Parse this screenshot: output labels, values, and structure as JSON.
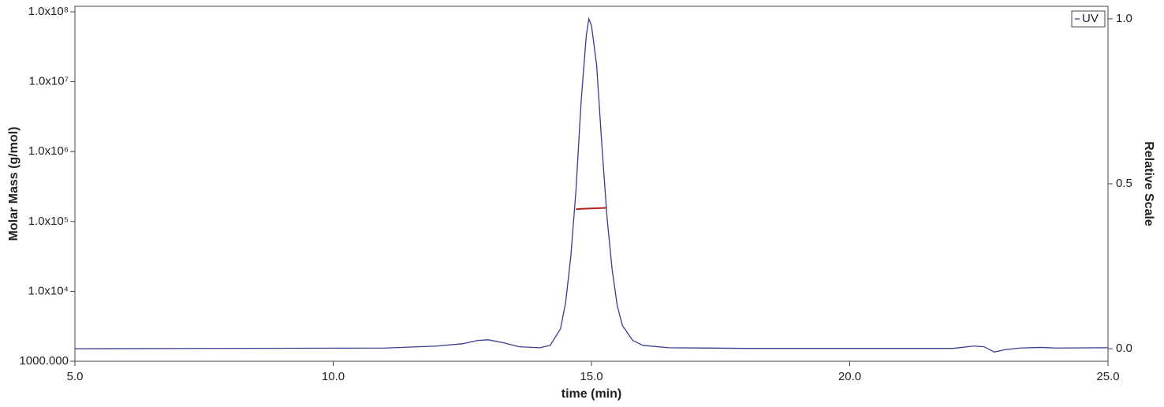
{
  "chart_data": {
    "type": "line",
    "xlabel": "time (min)",
    "ylabel": "Molar Mass (g/mol)",
    "y2label": "Relative Scale",
    "xlim": [
      5,
      25
    ],
    "xticks": [
      {
        "value": 5,
        "label": "5.0"
      },
      {
        "value": 10,
        "label": "10.0"
      },
      {
        "value": 15,
        "label": "15.0"
      },
      {
        "value": 20,
        "label": "20.0"
      },
      {
        "value": 25,
        "label": "25.0"
      }
    ],
    "ylim": [
      1000,
      120000000
    ],
    "ylog": true,
    "yticks": [
      {
        "value": 1000,
        "label": "1000.000"
      },
      {
        "value": 10000,
        "label": "1.0x10⁴"
      },
      {
        "value": 100000,
        "label": "1.0x10⁵"
      },
      {
        "value": 1000000,
        "label": "1.0x10⁶"
      },
      {
        "value": 10000000,
        "label": "1.0x10⁷"
      },
      {
        "value": 100000000,
        "label": "1.0x10⁸"
      }
    ],
    "y2lim": [
      -0.038,
      1.038
    ],
    "y2ticks": [
      {
        "value": 0,
        "label": "0.0"
      },
      {
        "value": 0.5,
        "label": "0.5"
      },
      {
        "value": 1,
        "label": "1.0"
      }
    ],
    "legend": "top-right",
    "series": [
      {
        "name": "UV",
        "color": "#3b3b8f",
        "axis": "y2",
        "x": [
          5,
          11,
          12,
          12.5,
          12.8,
          13.0,
          13.3,
          13.6,
          14.0,
          14.2,
          14.4,
          14.5,
          14.6,
          14.7,
          14.8,
          14.9,
          14.95,
          15.0,
          15.1,
          15.2,
          15.3,
          15.4,
          15.5,
          15.6,
          15.8,
          16.0,
          16.5,
          18,
          22,
          22.4,
          22.6,
          22.8,
          23.0,
          23.3,
          23.7,
          24,
          25
        ],
        "values": [
          0,
          0.002,
          0.008,
          0.015,
          0.025,
          0.027,
          0.018,
          0.006,
          0.003,
          0.01,
          0.06,
          0.14,
          0.28,
          0.48,
          0.75,
          0.95,
          1.0,
          0.98,
          0.86,
          0.62,
          0.4,
          0.24,
          0.13,
          0.07,
          0.025,
          0.01,
          0.003,
          0.001,
          0.001,
          0.008,
          0.006,
          -0.01,
          -0.003,
          0.002,
          0.004,
          0.002,
          0.003
        ]
      },
      {
        "color": "#b22222",
        "axis": "y",
        "x": [
          14.7,
          14.8,
          14.9,
          15.0,
          15.1,
          15.2,
          15.3
        ],
        "values": [
          150000,
          152000,
          153000,
          154000,
          155000,
          156000,
          157000
        ]
      }
    ]
  }
}
